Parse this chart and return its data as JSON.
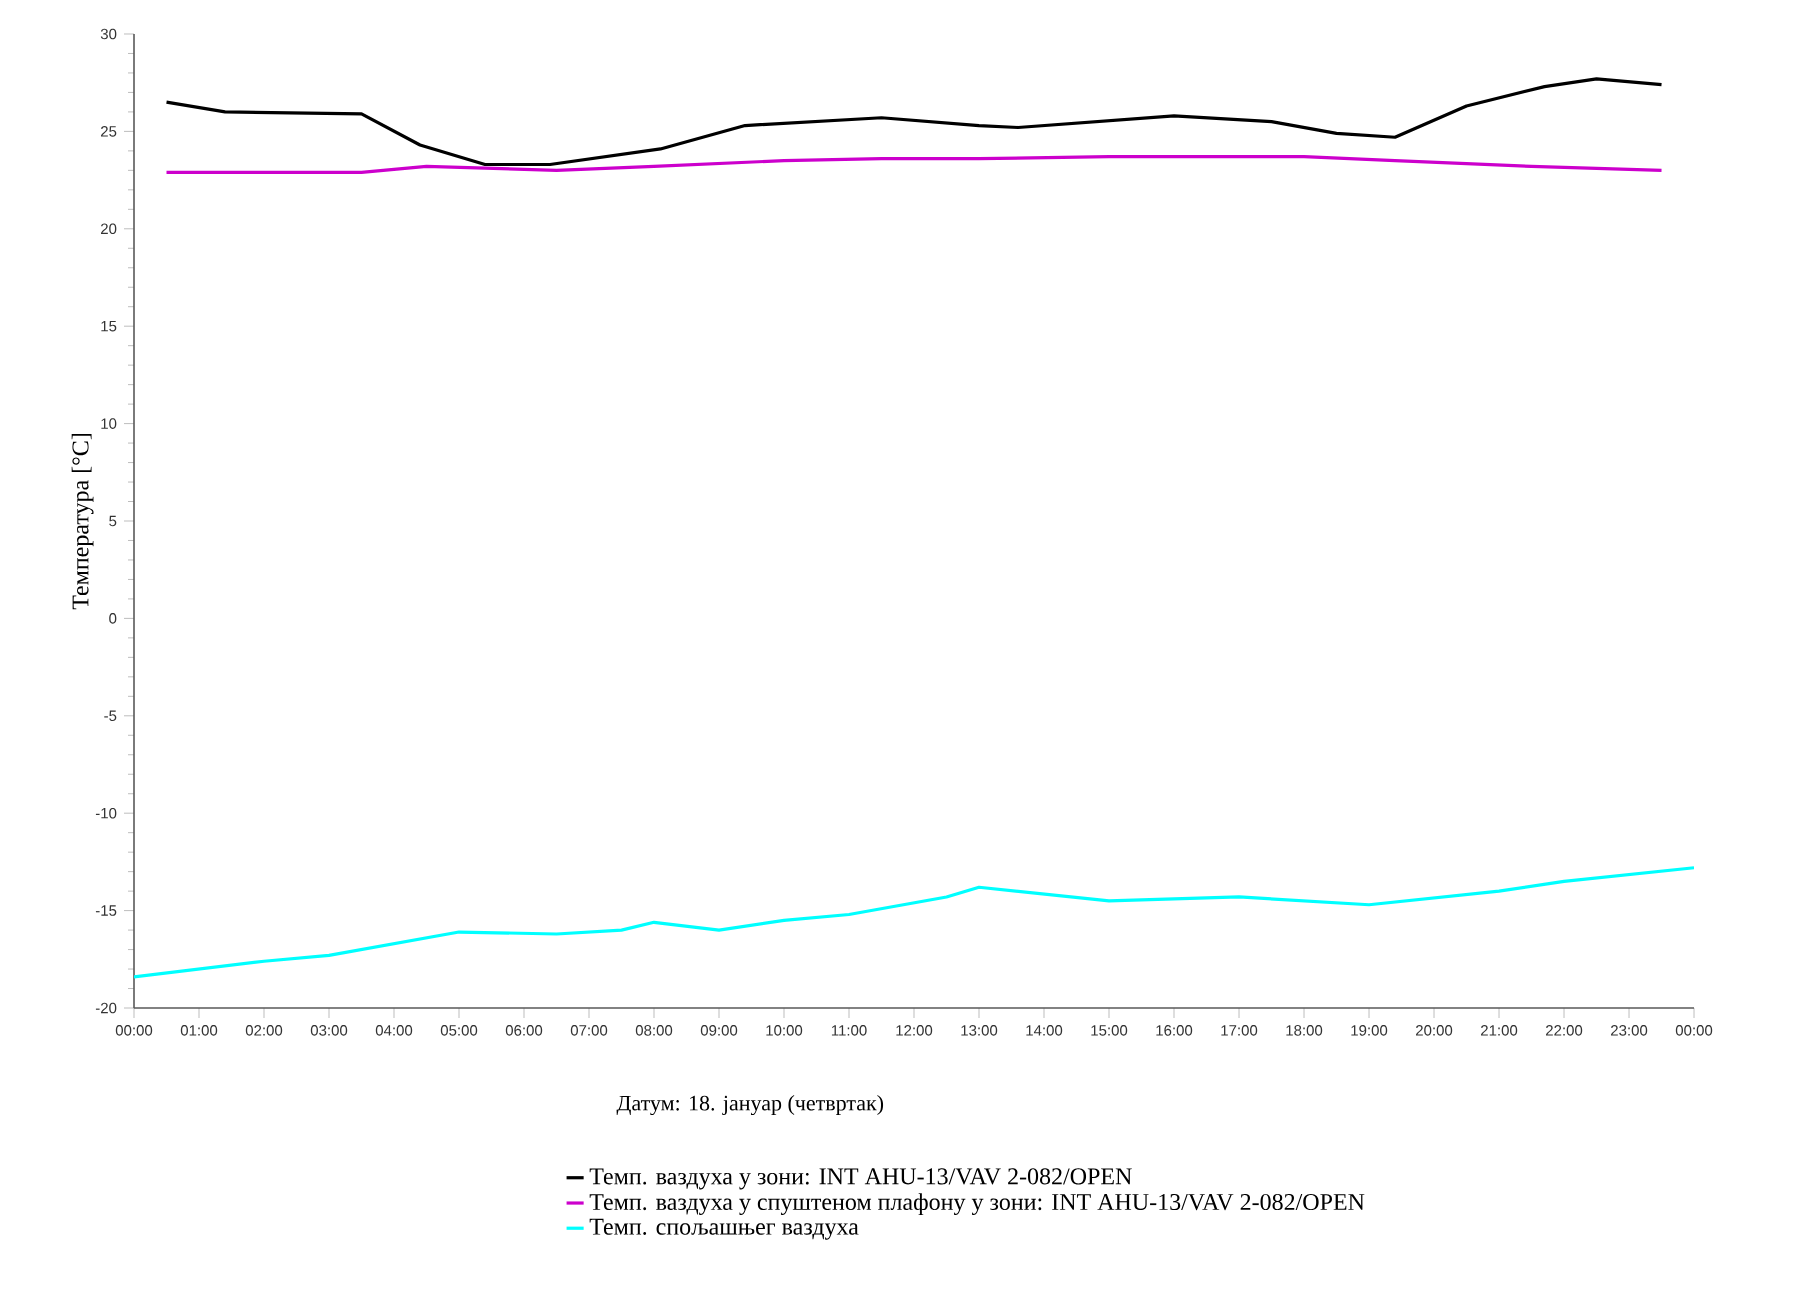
{
  "chart_data": {
    "type": "line",
    "xlabel": "Датум: 18. јануар (четвртак)",
    "ylabel": "Температура [°C]",
    "xlim": [
      0,
      24
    ],
    "ylim": [
      -20,
      30
    ],
    "xticks": [
      {
        "value": 0,
        "label": "00:00"
      },
      {
        "value": 1,
        "label": "01:00"
      },
      {
        "value": 2,
        "label": "02:00"
      },
      {
        "value": 3,
        "label": "03:00"
      },
      {
        "value": 4,
        "label": "04:00"
      },
      {
        "value": 5,
        "label": "05:00"
      },
      {
        "value": 6,
        "label": "06:00"
      },
      {
        "value": 7,
        "label": "07:00"
      },
      {
        "value": 8,
        "label": "08:00"
      },
      {
        "value": 9,
        "label": "09:00"
      },
      {
        "value": 10,
        "label": "10:00"
      },
      {
        "value": 11,
        "label": "11:00"
      },
      {
        "value": 12,
        "label": "12:00"
      },
      {
        "value": 13,
        "label": "13:00"
      },
      {
        "value": 14,
        "label": "14:00"
      },
      {
        "value": 15,
        "label": "15:00"
      },
      {
        "value": 16,
        "label": "16:00"
      },
      {
        "value": 17,
        "label": "17:00"
      },
      {
        "value": 18,
        "label": "18:00"
      },
      {
        "value": 19,
        "label": "19:00"
      },
      {
        "value": 20,
        "label": "20:00"
      },
      {
        "value": 21,
        "label": "21:00"
      },
      {
        "value": 22,
        "label": "22:00"
      },
      {
        "value": 23,
        "label": "23:00"
      },
      {
        "value": 24,
        "label": "00:00"
      }
    ],
    "yticks": [
      -20,
      -15,
      -10,
      -5,
      0,
      5,
      10,
      15,
      20,
      25,
      30
    ],
    "legend": "bottom",
    "marker": "none",
    "line_style": "solid",
    "series": [
      {
        "name": "Темп. ваздуха у зони: INT AHU-13/VAV 2-082/OPEN",
        "color": "#000000",
        "x": [
          0.5,
          1.4,
          3.5,
          4.4,
          5.4,
          6.4,
          8.1,
          9.4,
          11.5,
          13.0,
          13.6,
          16.0,
          17.5,
          18.5,
          19.4,
          20.5,
          21.7,
          22.5,
          23.5
        ],
        "values": [
          26.5,
          26.0,
          25.9,
          24.3,
          23.3,
          23.3,
          24.1,
          25.3,
          25.7,
          25.3,
          25.2,
          25.8,
          25.5,
          24.9,
          24.7,
          26.3,
          27.3,
          27.7,
          27.4
        ]
      },
      {
        "name": "Темп. ваздуха у спуштеном плафону у зони: INT AHU-13/VAV 2-082/OPEN",
        "color": "#cc00cc",
        "x": [
          0.5,
          3.5,
          4.5,
          6.5,
          8.0,
          10.0,
          11.5,
          13.0,
          15.0,
          18.0,
          19.4,
          21.5,
          23.5
        ],
        "values": [
          22.9,
          22.9,
          23.2,
          23.0,
          23.2,
          23.5,
          23.6,
          23.6,
          23.7,
          23.7,
          23.5,
          23.2,
          23.0
        ]
      },
      {
        "name": "Темп. спољашњег ваздуха",
        "color": "#00ffff",
        "x": [
          0,
          2,
          3,
          5,
          6.5,
          7.5,
          8,
          9,
          10,
          11,
          12.5,
          13,
          15,
          17,
          19,
          21,
          22,
          24
        ],
        "values": [
          -18.4,
          -17.6,
          -17.3,
          -16.1,
          -16.2,
          -16.0,
          -15.6,
          -16.0,
          -15.5,
          -15.2,
          -14.3,
          -13.8,
          -14.5,
          -14.3,
          -14.7,
          -14.0,
          -13.5,
          -12.8
        ]
      }
    ]
  }
}
